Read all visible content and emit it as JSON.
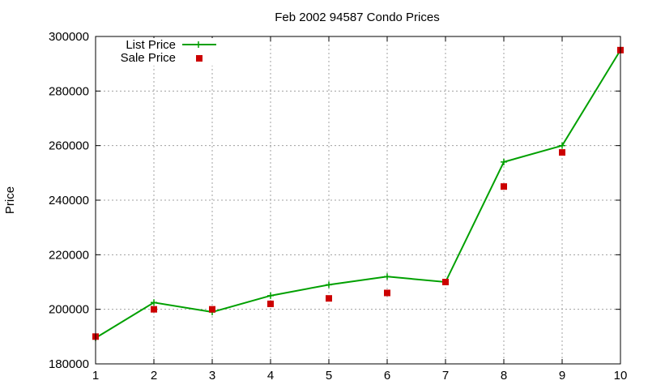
{
  "chart_data": {
    "type": "line",
    "title": "Feb 2002 94587 Condo Prices",
    "xlabel": "",
    "ylabel": "Price",
    "x": [
      1,
      2,
      3,
      4,
      5,
      6,
      7,
      8,
      9,
      10
    ],
    "xlim": [
      1,
      10
    ],
    "ylim": [
      180000,
      300000
    ],
    "xticks": [
      "1",
      "2",
      "3",
      "4",
      "5",
      "6",
      "7",
      "8",
      "9",
      "10"
    ],
    "yticks": [
      "180000",
      "200000",
      "220000",
      "240000",
      "260000",
      "280000",
      "300000"
    ],
    "grid": true,
    "legend_position": "top-left",
    "series": [
      {
        "name": "List Price",
        "kind": "line-with-plus-markers",
        "color": "#00a000",
        "values": [
          189500,
          202500,
          199000,
          205000,
          209000,
          212000,
          210000,
          254000,
          260000,
          295000
        ]
      },
      {
        "name": "Sale Price",
        "kind": "square-markers",
        "color": "#cc0000",
        "values": [
          190000,
          200000,
          200000,
          202000,
          204000,
          206000,
          210000,
          245000,
          257500,
          295000
        ]
      }
    ]
  }
}
